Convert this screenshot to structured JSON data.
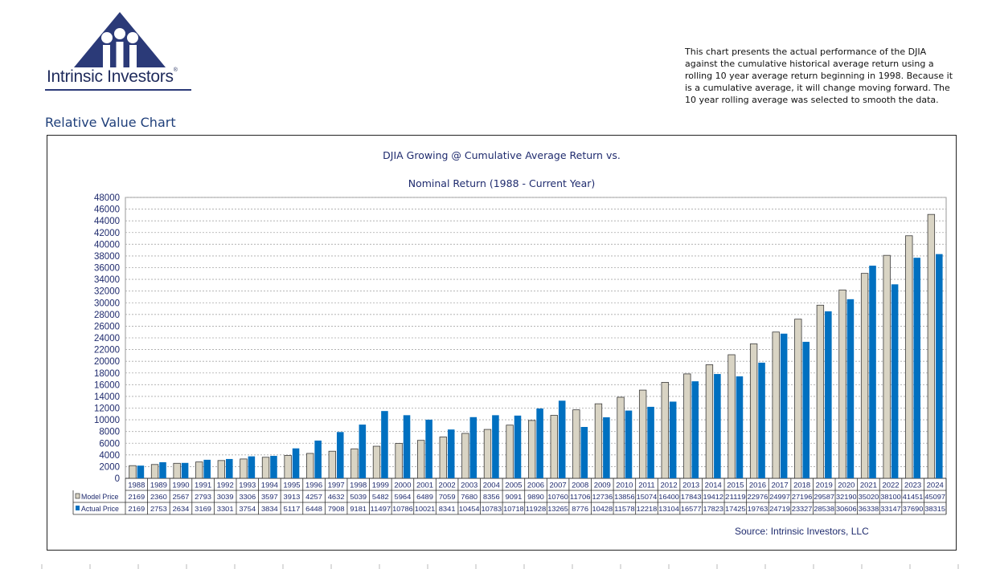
{
  "logo": {
    "name": "Intrinsic Investors",
    "reg": "®"
  },
  "description": "This chart presents the actual performance of the DJIA against the cumulative historical average return using a rolling 10 year average return beginning in 1998. Because it is a cumulative average, it will change moving forward. The 10 year rolling average was selected to smooth the data.",
  "page_heading": "Relative Value Chart",
  "colors": {
    "model": "#d9d4c4",
    "actual": "#0070c0",
    "title": "#1f2b6e",
    "heading": "#1f3f7a"
  },
  "chart_data": {
    "type": "bar",
    "title": "DJIA Growing @  Cumulative Average Return vs.",
    "subtitle": "Nominal Return  (1988 - Current Year)",
    "source": "Source: Intrinsic Investors, LLC",
    "ylim": [
      0,
      48000
    ],
    "yticks": [
      0,
      2000,
      4000,
      6000,
      8000,
      10000,
      12000,
      14000,
      16000,
      18000,
      20000,
      22000,
      24000,
      26000,
      28000,
      30000,
      32000,
      34000,
      36000,
      38000,
      40000,
      42000,
      44000,
      46000,
      48000
    ],
    "grid": true,
    "legend": "data-table",
    "categories": [
      "1988",
      "1989",
      "1990",
      "1991",
      "1992",
      "1993",
      "1994",
      "1995",
      "1996",
      "1997",
      "1998",
      "1999",
      "2000",
      "2001",
      "2002",
      "2003",
      "2004",
      "2005",
      "2006",
      "2007",
      "2008",
      "2009",
      "2010",
      "2011",
      "2012",
      "2013",
      "2014",
      "2015",
      "2016",
      "2017",
      "2018",
      "2019",
      "2020",
      "2021",
      "2022",
      "2023",
      "2024"
    ],
    "series": [
      {
        "name": "Model Price",
        "color": "#d9d4c4",
        "values": [
          2169,
          2360,
          2567,
          2793,
          3039,
          3306,
          3597,
          3913,
          4257,
          4632,
          5039,
          5482,
          5964,
          6489,
          7059,
          7680,
          8356,
          9091,
          9890,
          10760,
          11706,
          12736,
          13856,
          15074,
          16400,
          17843,
          19412,
          21119,
          22976,
          24997,
          27196,
          29587,
          32190,
          35020,
          38100,
          41451,
          45097
        ]
      },
      {
        "name": "Actual Price",
        "color": "#0070c0",
        "values": [
          2169,
          2753,
          2634,
          3169,
          3301,
          3754,
          3834,
          5117,
          6448,
          7908,
          9181,
          11497,
          10786,
          10021,
          8341,
          10454,
          10783,
          10718,
          11928,
          13265,
          8776,
          10428,
          11578,
          12218,
          13104,
          16577,
          17823,
          17425,
          19763,
          24719,
          23327,
          28538,
          30606,
          36338,
          33147,
          37690,
          38315
        ]
      }
    ]
  }
}
